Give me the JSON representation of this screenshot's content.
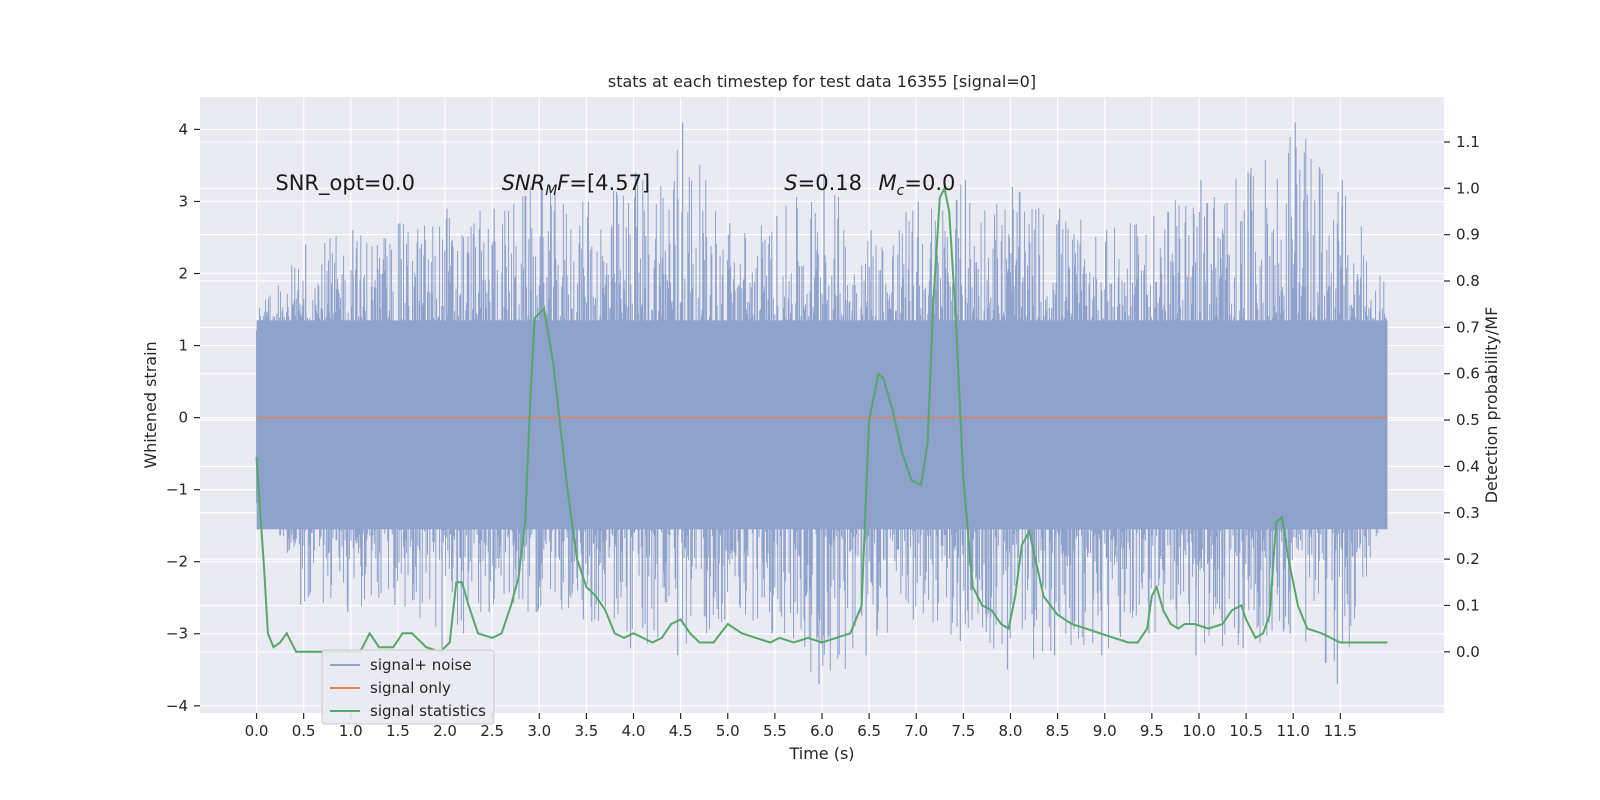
{
  "chart_data": {
    "type": "line",
    "title": "stats at each timestep for test data 16355 [signal=0]",
    "xlabel": "Time (s)",
    "ylabel": "Whitened strain",
    "y2label": "Detection probability/MF",
    "xlim": [
      -0.6,
      12.6
    ],
    "ylim": [
      -4.1,
      4.45
    ],
    "y2lim": [
      -0.132,
      1.197
    ],
    "x_ticks": [
      0.0,
      0.5,
      1.0,
      1.5,
      2.0,
      2.5,
      3.0,
      3.5,
      4.0,
      4.5,
      5.0,
      5.5,
      6.0,
      6.5,
      7.0,
      7.5,
      8.0,
      8.5,
      9.0,
      9.5,
      10.0,
      10.5,
      11.0,
      11.5
    ],
    "x_tick_labels": [
      "0.0",
      "0.5",
      "1.0",
      "1.5",
      "2.0",
      "2.5",
      "3.0",
      "3.5",
      "4.0",
      "4.5",
      "5.0",
      "5.5",
      "6.0",
      "6.5",
      "7.0",
      "7.5",
      "8.0",
      "8.5",
      "9.0",
      "9.5",
      "10.0",
      "10.5",
      "11.0",
      "11.5"
    ],
    "y_ticks": [
      -4,
      -3,
      -2,
      -1,
      0,
      1,
      2,
      3,
      4
    ],
    "y_tick_labels": [
      "−4",
      "−3",
      "−2",
      "−1",
      "0",
      "1",
      "2",
      "3",
      "4"
    ],
    "y2_ticks": [
      0.0,
      0.1,
      0.2,
      0.3,
      0.4,
      0.5,
      0.6,
      0.7,
      0.8,
      0.9,
      1.0,
      1.1
    ],
    "y2_tick_labels": [
      "0.0",
      "0.1",
      "0.2",
      "0.3",
      "0.4",
      "0.5",
      "0.6",
      "0.7",
      "0.8",
      "0.9",
      "1.0",
      "1.1"
    ],
    "grid": true,
    "legend_position": "lower-left",
    "colors": {
      "background": "#eaeaf2",
      "grid": "#ffffff",
      "noise": "#8ea2cc",
      "signal_only": "#dd8452",
      "statistics": "#55a868"
    },
    "annotations": [
      {
        "label": "SNR_opt=0.0",
        "x": 0.2,
        "y": 3.3
      },
      {
        "label": "SNR_MF=[4.57]",
        "x": 2.6,
        "y": 3.3
      },
      {
        "label": "S=0.18",
        "x": 5.6,
        "y": 3.3
      },
      {
        "label": "M_c=0.0",
        "x": 6.6,
        "y": 3.3
      }
    ],
    "series": [
      {
        "name": "signal+ noise",
        "axis": "left",
        "x_range": [
          0.0,
          12.0
        ],
        "envelope_upper": [
          [
            0.0,
            1.5
          ],
          [
            0.5,
            2.4
          ],
          [
            1.0,
            2.6
          ],
          [
            1.5,
            2.7
          ],
          [
            2.0,
            2.9
          ],
          [
            2.5,
            2.9
          ],
          [
            3.0,
            3.3
          ],
          [
            3.5,
            3.0
          ],
          [
            4.0,
            3.4
          ],
          [
            4.5,
            4.1
          ],
          [
            5.0,
            2.7
          ],
          [
            5.5,
            2.8
          ],
          [
            6.0,
            3.4
          ],
          [
            6.5,
            2.6
          ],
          [
            7.0,
            3.0
          ],
          [
            7.5,
            3.3
          ],
          [
            8.0,
            3.2
          ],
          [
            8.5,
            2.9
          ],
          [
            9.0,
            2.6
          ],
          [
            9.5,
            2.8
          ],
          [
            10.0,
            3.3
          ],
          [
            10.5,
            3.4
          ],
          [
            11.0,
            4.1
          ],
          [
            11.5,
            3.3
          ],
          [
            12.0,
            1.9
          ]
        ],
        "envelope_lower": [
          [
            0.0,
            -1.1
          ],
          [
            0.5,
            -2.6
          ],
          [
            1.0,
            -2.7
          ],
          [
            1.5,
            -2.6
          ],
          [
            2.0,
            -3.2
          ],
          [
            2.5,
            -2.7
          ],
          [
            3.0,
            -2.7
          ],
          [
            3.5,
            -2.8
          ],
          [
            4.0,
            -3.2
          ],
          [
            4.5,
            -3.3
          ],
          [
            5.0,
            -2.8
          ],
          [
            5.5,
            -3.0
          ],
          [
            6.0,
            -3.7
          ],
          [
            6.5,
            -3.3
          ],
          [
            7.0,
            -2.8
          ],
          [
            7.5,
            -3.1
          ],
          [
            8.0,
            -3.5
          ],
          [
            8.5,
            -3.3
          ],
          [
            9.0,
            -3.3
          ],
          [
            9.5,
            -3.0
          ],
          [
            10.0,
            -3.3
          ],
          [
            10.5,
            -3.2
          ],
          [
            11.0,
            -3.0
          ],
          [
            11.5,
            -3.7
          ],
          [
            12.0,
            -1.2
          ]
        ]
      },
      {
        "name": "signal only",
        "axis": "left",
        "x": [
          0.0,
          12.0
        ],
        "values": [
          0.0,
          0.0
        ]
      },
      {
        "name": "signal statistics",
        "axis": "right",
        "x": [
          0.0,
          0.08,
          0.12,
          0.18,
          0.25,
          0.32,
          0.42,
          0.5,
          0.6,
          0.75,
          0.9,
          1.0,
          1.1,
          1.2,
          1.3,
          1.38,
          1.45,
          1.55,
          1.65,
          1.8,
          1.95,
          2.05,
          2.12,
          2.18,
          2.25,
          2.35,
          2.5,
          2.6,
          2.7,
          2.78,
          2.85,
          2.9,
          2.95,
          3.05,
          3.15,
          3.3,
          3.4,
          3.5,
          3.6,
          3.7,
          3.8,
          3.9,
          4.0,
          4.1,
          4.2,
          4.3,
          4.4,
          4.5,
          4.6,
          4.7,
          4.85,
          5.0,
          5.15,
          5.3,
          5.45,
          5.55,
          5.7,
          5.85,
          6.0,
          6.15,
          6.3,
          6.42,
          6.5,
          6.55,
          6.6,
          6.65,
          6.75,
          6.85,
          6.95,
          7.05,
          7.12,
          7.18,
          7.25,
          7.3,
          7.35,
          7.42,
          7.5,
          7.6,
          7.7,
          7.8,
          7.9,
          7.98,
          8.05,
          8.12,
          8.2,
          8.35,
          8.5,
          8.65,
          8.8,
          8.95,
          9.1,
          9.25,
          9.35,
          9.45,
          9.5,
          9.55,
          9.62,
          9.7,
          9.78,
          9.85,
          9.95,
          10.1,
          10.25,
          10.35,
          10.45,
          10.5,
          10.6,
          10.68,
          10.75,
          10.82,
          10.88,
          10.95,
          11.05,
          11.15,
          11.3,
          11.5,
          11.7,
          11.85,
          12.0
        ],
        "values": [
          0.42,
          0.18,
          0.04,
          0.01,
          0.02,
          0.04,
          0.0,
          0.0,
          0.0,
          0.0,
          0.0,
          0.0,
          0.0,
          0.04,
          0.01,
          0.01,
          0.01,
          0.04,
          0.04,
          0.01,
          0.0,
          0.02,
          0.15,
          0.15,
          0.1,
          0.04,
          0.03,
          0.04,
          0.1,
          0.16,
          0.28,
          0.52,
          0.72,
          0.74,
          0.62,
          0.35,
          0.2,
          0.14,
          0.12,
          0.09,
          0.04,
          0.03,
          0.04,
          0.03,
          0.02,
          0.03,
          0.06,
          0.07,
          0.04,
          0.02,
          0.02,
          0.06,
          0.04,
          0.03,
          0.02,
          0.03,
          0.02,
          0.03,
          0.02,
          0.03,
          0.04,
          0.1,
          0.5,
          0.55,
          0.6,
          0.59,
          0.52,
          0.43,
          0.37,
          0.36,
          0.45,
          0.75,
          0.98,
          1.0,
          0.95,
          0.72,
          0.37,
          0.14,
          0.1,
          0.09,
          0.06,
          0.05,
          0.12,
          0.23,
          0.26,
          0.12,
          0.08,
          0.06,
          0.05,
          0.04,
          0.03,
          0.02,
          0.02,
          0.05,
          0.12,
          0.14,
          0.09,
          0.06,
          0.05,
          0.06,
          0.06,
          0.05,
          0.06,
          0.09,
          0.1,
          0.07,
          0.03,
          0.04,
          0.08,
          0.28,
          0.29,
          0.2,
          0.1,
          0.05,
          0.04,
          0.02,
          0.02,
          0.02,
          0.02
        ]
      }
    ]
  }
}
